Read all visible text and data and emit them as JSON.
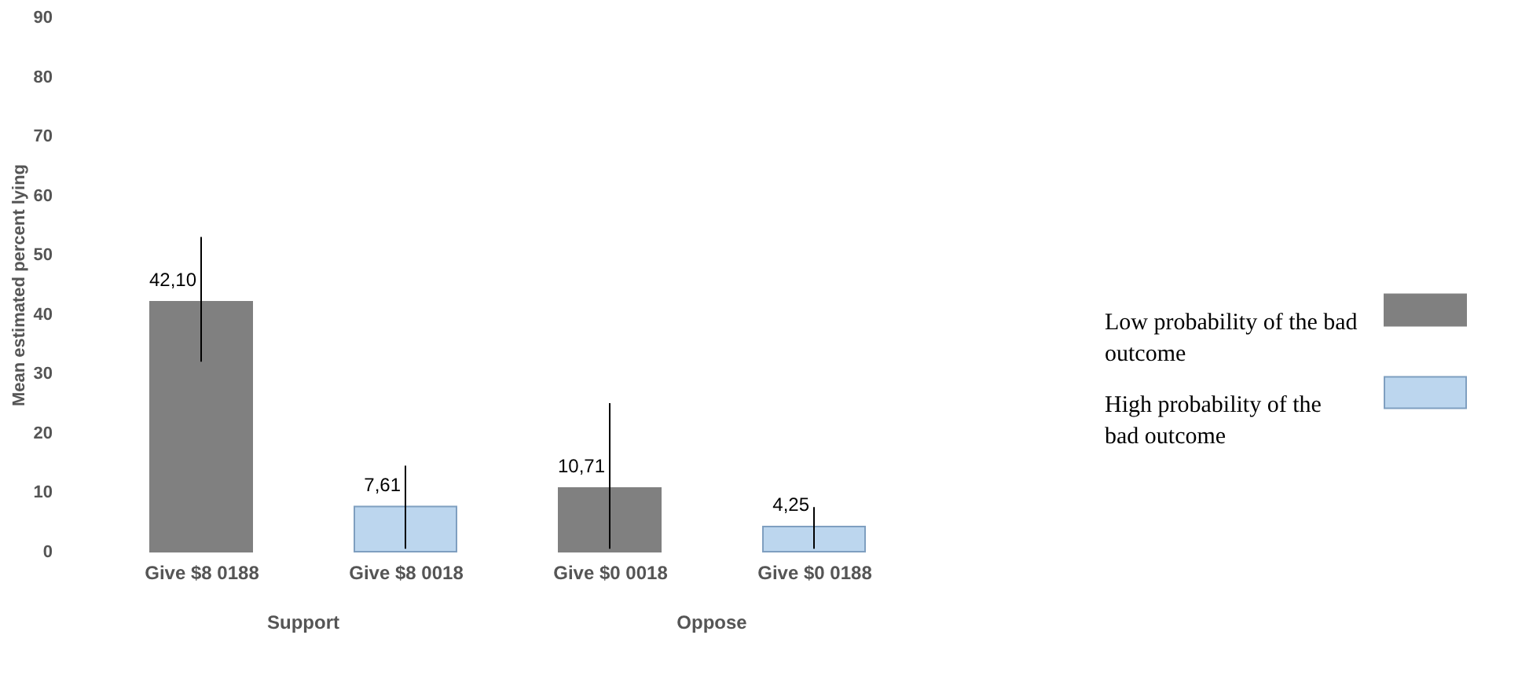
{
  "chart_data": {
    "type": "bar",
    "ylabel": "Mean estimated percent lying",
    "categories": [
      "Give $8   0188",
      "Give $8   0018",
      "Give $0   0018",
      "Give $0   0188"
    ],
    "series": [
      {
        "name": "Low probability of the bad outcome",
        "color": "#808080",
        "values": [
          42.1,
          null,
          10.71,
          null
        ],
        "errors": [
          [
            32,
            53
          ],
          null,
          [
            0.5,
            25
          ],
          null
        ],
        "value_labels": [
          "42,10",
          null,
          "10,71",
          null
        ]
      },
      {
        "name": "High probability of the bad outcome",
        "color": "#bcd6ee",
        "values": [
          null,
          7.61,
          null,
          4.25
        ],
        "errors": [
          null,
          [
            0.5,
            14.5
          ],
          null,
          [
            0.5,
            7.5
          ]
        ],
        "value_labels": [
          null,
          "7,61",
          null,
          "4,25"
        ]
      }
    ],
    "annotations": [
      "Support",
      "Oppose"
    ],
    "ylim": [
      0,
      90
    ],
    "yticks": [
      0,
      10,
      20,
      30,
      40,
      50,
      60,
      70,
      80,
      90
    ],
    "grid": false,
    "legend": "right"
  }
}
